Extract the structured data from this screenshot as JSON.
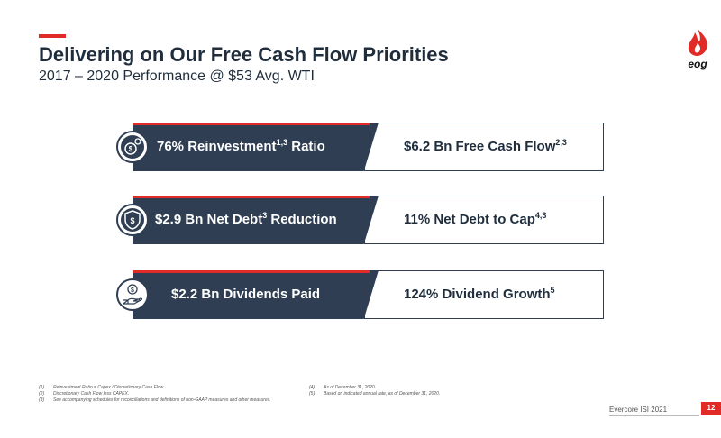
{
  "header": {
    "title": "Delivering on Our Free Cash Flow Priorities",
    "subtitle": "2017 – 2020 Performance @ $53 Avg. WTI",
    "logo_text": "eog"
  },
  "rows": [
    {
      "left_main": "76% Reinvestment",
      "left_sup": "1,3",
      "left_tail": " Ratio",
      "right_main": "$6.2 Bn Free Cash Flow",
      "right_sup": "2,3",
      "icon": "gear-dollar-icon"
    },
    {
      "left_main": "$2.9 Bn Net Debt",
      "left_sup": "3",
      "left_tail": " Reduction",
      "right_main": "11% Net Debt to Cap",
      "right_sup": "4,3",
      "icon": "shield-dollar-icon"
    },
    {
      "left_main": "$2.2 Bn Dividends Paid",
      "left_sup": "",
      "left_tail": "",
      "right_main": "124% Dividend Growth",
      "right_sup": "5",
      "icon": "hand-coin-icon"
    }
  ],
  "footnotes_left": [
    {
      "num": "(1)",
      "text": "Reinvestment Ratio = Capex / Discretionary Cash Flow."
    },
    {
      "num": "(2)",
      "text": "Discretionary Cash Flow less CAPEX."
    },
    {
      "num": "(3)",
      "text": "See accompanying schedules for reconciliations and definitions of non-GAAP measures and other measures."
    }
  ],
  "footnotes_right": [
    {
      "num": "(4)",
      "text": "As of December 31, 2020."
    },
    {
      "num": "(5)",
      "text": "Based on indicated annual rate, as of December 31, 2020."
    }
  ],
  "footer": {
    "label": "Evercore ISI 2021",
    "page": "12"
  },
  "colors": {
    "navy": "#2f3e52",
    "red": "#e02b27"
  }
}
